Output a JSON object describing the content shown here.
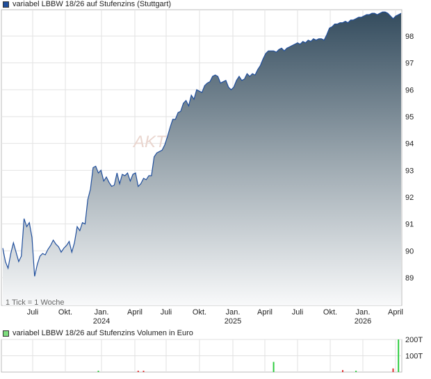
{
  "price_legend": {
    "label": "variabel LBBW 18/26 auf Stufenzins (Stuttgart)",
    "color": "#1f4e9c"
  },
  "volume_legend": {
    "label": "variabel LBBW 18/26 auf Stufenzins Volumen in Euro",
    "color": "#7ddc7d"
  },
  "tick_note": "1 Tick = 1 Woche",
  "watermark": "AKT",
  "chart_data": [
    {
      "type": "area",
      "x_tick_labels": [
        "Juli",
        "Okt.",
        "Jan.",
        "April",
        "Juli",
        "Okt.",
        "Jan.",
        "April",
        "Juli",
        "Okt.",
        "Jan.",
        "April"
      ],
      "year_labels": [
        "2024",
        "2025",
        "2026"
      ],
      "y_tick_labels": [
        "89",
        "90",
        "91",
        "92",
        "93",
        "94",
        "95",
        "96",
        "97",
        "98"
      ],
      "ylim": [
        88.1,
        98.9
      ],
      "x_range_weeks": [
        0,
        150
      ],
      "grid": true,
      "series": [
        {
          "points": [
            [
              0,
              90.1
            ],
            [
              1,
              89.6
            ],
            [
              2,
              89.35
            ],
            [
              3,
              89.9
            ],
            [
              4,
              90.3
            ],
            [
              5,
              89.95
            ],
            [
              6,
              89.6
            ],
            [
              7,
              89.8
            ],
            [
              8,
              91.2
            ],
            [
              9,
              90.9
            ],
            [
              10,
              91.05
            ],
            [
              11,
              90.5
            ],
            [
              12,
              89.05
            ],
            [
              13,
              89.5
            ],
            [
              14,
              89.8
            ],
            [
              15,
              89.9
            ],
            [
              16,
              89.85
            ],
            [
              17,
              90.05
            ],
            [
              18,
              90.2
            ],
            [
              19,
              90.4
            ],
            [
              20,
              90.25
            ],
            [
              21,
              90.15
            ],
            [
              22,
              89.95
            ],
            [
              23,
              90.1
            ],
            [
              24,
              90.2
            ],
            [
              25,
              90.35
            ],
            [
              26,
              89.95
            ],
            [
              27,
              90.3
            ],
            [
              28,
              90.9
            ],
            [
              29,
              90.75
            ],
            [
              30,
              91.05
            ],
            [
              31,
              91.0
            ],
            [
              32,
              91.9
            ],
            [
              33,
              92.3
            ],
            [
              34,
              93.1
            ],
            [
              35,
              93.15
            ],
            [
              36,
              92.9
            ],
            [
              37,
              93.0
            ],
            [
              38,
              92.6
            ],
            [
              39,
              92.75
            ],
            [
              40,
              92.55
            ],
            [
              41,
              92.4
            ],
            [
              42,
              92.45
            ],
            [
              43,
              92.9
            ],
            [
              44,
              92.5
            ],
            [
              45,
              92.85
            ],
            [
              46,
              92.8
            ],
            [
              47,
              92.9
            ],
            [
              48,
              92.6
            ],
            [
              49,
              92.85
            ],
            [
              50,
              92.9
            ],
            [
              51,
              92.4
            ],
            [
              52,
              92.5
            ],
            [
              53,
              92.7
            ],
            [
              54,
              92.65
            ],
            [
              55,
              92.8
            ],
            [
              56,
              92.8
            ],
            [
              57,
              93.5
            ],
            [
              58,
              93.65
            ],
            [
              59,
              93.7
            ],
            [
              60,
              93.75
            ],
            [
              61,
              93.95
            ],
            [
              62,
              94.25
            ],
            [
              63,
              94.6
            ],
            [
              64,
              94.9
            ],
            [
              65,
              94.9
            ],
            [
              66,
              95.15
            ],
            [
              67,
              95.2
            ],
            [
              68,
              95.5
            ],
            [
              69,
              95.6
            ],
            [
              70,
              95.4
            ],
            [
              71,
              95.8
            ],
            [
              72,
              95.65
            ],
            [
              73,
              96.0
            ],
            [
              74,
              95.95
            ],
            [
              75,
              95.9
            ],
            [
              76,
              96.15
            ],
            [
              77,
              96.25
            ],
            [
              78,
              96.3
            ],
            [
              79,
              96.5
            ],
            [
              80,
              96.55
            ],
            [
              81,
              96.5
            ],
            [
              82,
              96.25
            ],
            [
              83,
              96.3
            ],
            [
              84,
              96.35
            ],
            [
              85,
              96.1
            ],
            [
              86,
              96.0
            ],
            [
              87,
              96.1
            ],
            [
              88,
              96.35
            ],
            [
              89,
              96.5
            ],
            [
              90,
              96.35
            ],
            [
              91,
              96.4
            ],
            [
              92,
              96.6
            ],
            [
              93,
              96.5
            ],
            [
              94,
              96.6
            ],
            [
              95,
              96.55
            ],
            [
              96,
              96.75
            ],
            [
              97,
              96.9
            ],
            [
              98,
              97.15
            ],
            [
              99,
              97.35
            ],
            [
              100,
              97.45
            ],
            [
              101,
              97.45
            ],
            [
              102,
              97.45
            ],
            [
              103,
              97.4
            ],
            [
              104,
              97.5
            ],
            [
              105,
              97.55
            ],
            [
              106,
              97.45
            ],
            [
              107,
              97.55
            ],
            [
              108,
              97.6
            ],
            [
              109,
              97.65
            ],
            [
              110,
              97.7
            ],
            [
              111,
              97.75
            ],
            [
              112,
              97.7
            ],
            [
              113,
              97.8
            ],
            [
              114,
              97.75
            ],
            [
              115,
              97.85
            ],
            [
              116,
              97.8
            ],
            [
              117,
              97.9
            ],
            [
              118,
              97.85
            ],
            [
              119,
              97.9
            ],
            [
              120,
              97.9
            ],
            [
              121,
              97.85
            ],
            [
              122,
              98.05
            ],
            [
              123,
              98.3
            ],
            [
              124,
              98.35
            ],
            [
              125,
              98.45
            ],
            [
              126,
              98.45
            ],
            [
              127,
              98.5
            ],
            [
              128,
              98.5
            ],
            [
              129,
              98.55
            ],
            [
              130,
              98.5
            ],
            [
              131,
              98.6
            ],
            [
              132,
              98.6
            ],
            [
              133,
              98.65
            ],
            [
              134,
              98.7
            ],
            [
              135,
              98.7
            ],
            [
              136,
              98.75
            ],
            [
              137,
              98.8
            ],
            [
              138,
              98.8
            ],
            [
              139,
              98.85
            ],
            [
              140,
              98.85
            ],
            [
              141,
              98.8
            ],
            [
              142,
              98.85
            ],
            [
              143,
              98.9
            ],
            [
              144,
              98.9
            ],
            [
              145,
              98.85
            ],
            [
              146,
              98.75
            ],
            [
              147,
              98.65
            ],
            [
              148,
              98.75
            ],
            [
              149,
              98.8
            ],
            [
              150,
              98.85
            ]
          ]
        }
      ]
    },
    {
      "type": "bar",
      "y_tick_labels": [
        "100T",
        "200T"
      ],
      "ylim": [
        0,
        200000
      ],
      "x_range_weeks": [
        0,
        150
      ],
      "grid": true,
      "bars": [
        {
          "week": 36,
          "value": 8000,
          "color": "#2ecc40"
        },
        {
          "week": 51,
          "value": 8000,
          "color": "#e03030"
        },
        {
          "week": 53,
          "value": 8000,
          "color": "#e03030"
        },
        {
          "week": 102,
          "value": 62000,
          "color": "#2ecc40"
        },
        {
          "week": 128,
          "value": 12000,
          "color": "#e03030"
        },
        {
          "week": 133,
          "value": 8000,
          "color": "#2ecc40"
        },
        {
          "week": 147,
          "value": 22000,
          "color": "#e03030"
        },
        {
          "week": 149,
          "value": 200000,
          "color": "#2ecc40"
        }
      ]
    }
  ]
}
